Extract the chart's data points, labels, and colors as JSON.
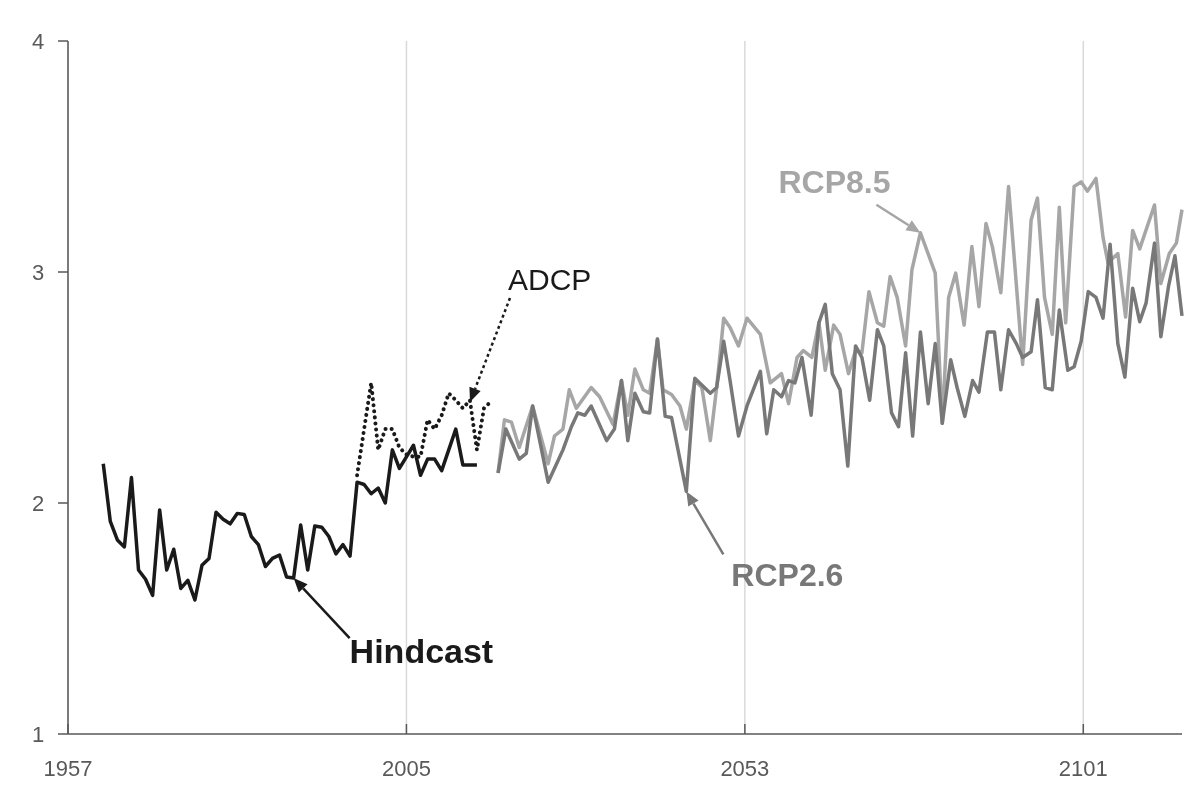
{
  "chart_data": {
    "type": "line",
    "xlim": [
      1957,
      2115
    ],
    "xticks": [
      1957,
      2005,
      2053,
      2101
    ],
    "ylim": [
      1,
      4
    ],
    "yticks": [
      1,
      2,
      3,
      4
    ],
    "grid": "x",
    "marker": "none",
    "annotations": [
      {
        "text": "Hindcast",
        "x": 1989,
        "y": 1.675
      },
      "ADCP",
      {
        "text": "RCP8.5",
        "x": 2077.9,
        "y": 3.17
      },
      {
        "text": "RCP2.6",
        "x": 2044.7,
        "y": 2.05
      }
    ],
    "series": [
      {
        "color": "#a6a6a6",
        "line_style": "solid",
        "x": [
          2018.0,
          2018.9,
          2019.9,
          2021.0,
          2022.9,
          2025.1,
          2026.0,
          2027.2,
          2028.1,
          2029.1,
          2031.2,
          2032.4,
          2034.3,
          2035.5,
          2036.4,
          2037.4,
          2038.6,
          2039.5,
          2040.6,
          2041.4,
          2042.6,
          2043.8,
          2044.7,
          2045.9,
          2046.9,
          2048.1,
          2049.0,
          2050.0,
          2050.9,
          2052.1,
          2053.3,
          2055.2,
          2056.6,
          2058.2,
          2059.2,
          2060.4,
          2061.3,
          2062.5,
          2063.5,
          2064.4,
          2065.6,
          2066.5,
          2067.7,
          2068.7,
          2069.6,
          2070.6,
          2071.8,
          2072.7,
          2073.6,
          2074.6,
          2075.8,
          2076.7,
          2077.9,
          2080.0,
          2081.0,
          2081.9,
          2082.9,
          2084.1,
          2085.2,
          2086.2,
          2087.2,
          2088.1,
          2089.3,
          2090.4,
          2092.4,
          2093.6,
          2094.5,
          2095.5,
          2096.6,
          2097.6,
          2098.5,
          2099.7,
          2100.7,
          2101.6,
          2102.8,
          2103.8,
          2104.5,
          2105.9,
          2107.0,
          2108.0,
          2109.0,
          2111.1,
          2112.0,
          2113.2,
          2114.2,
          2115.0
        ],
        "values": [
          2.13,
          2.36,
          2.35,
          2.24,
          2.42,
          2.17,
          2.29,
          2.32,
          2.49,
          2.41,
          2.5,
          2.46,
          2.34,
          2.53,
          2.38,
          2.58,
          2.49,
          2.475,
          2.71,
          2.49,
          2.47,
          2.42,
          2.32,
          2.53,
          2.5,
          2.27,
          2.5,
          2.8,
          2.76,
          2.68,
          2.8,
          2.73,
          2.52,
          2.56,
          2.43,
          2.63,
          2.66,
          2.63,
          2.78,
          2.575,
          2.77,
          2.73,
          2.56,
          2.66,
          2.65,
          2.915,
          2.78,
          2.765,
          2.98,
          2.89,
          2.68,
          3.01,
          3.17,
          2.995,
          2.345,
          2.89,
          2.995,
          2.77,
          3.11,
          2.85,
          3.21,
          3.11,
          2.91,
          3.37,
          2.6,
          3.225,
          3.32,
          2.89,
          2.73,
          3.28,
          2.78,
          3.37,
          3.39,
          3.35,
          3.405,
          3.15,
          3.04,
          3.08,
          2.805,
          3.18,
          3.1,
          3.29,
          2.95,
          3.08,
          3.125,
          3.27
        ]
      },
      {
        "color": "#787878",
        "line_style": "solid",
        "x": [
          2018.0,
          2019.1,
          2021.0,
          2022.0,
          2022.9,
          2025.1,
          2026.3,
          2027.2,
          2028.4,
          2029.3,
          2030.3,
          2031.2,
          2033.4,
          2034.5,
          2035.5,
          2036.4,
          2037.4,
          2038.6,
          2039.5,
          2040.6,
          2041.7,
          2042.6,
          2044.7,
          2045.9,
          2048.1,
          2049.0,
          2050.0,
          2050.9,
          2052.1,
          2053.3,
          2055.2,
          2056.1,
          2057.1,
          2058.2,
          2059.2,
          2060.1,
          2061.1,
          2062.4,
          2063.5,
          2064.4,
          2065.4,
          2066.5,
          2067.6,
          2068.7,
          2069.6,
          2070.7,
          2071.8,
          2072.7,
          2073.8,
          2074.8,
          2075.8,
          2076.8,
          2077.9,
          2079.0,
          2080.0,
          2081.0,
          2082.2,
          2083.1,
          2084.2,
          2085.3,
          2086.2,
          2087.4,
          2088.4,
          2089.3,
          2090.4,
          2091.5,
          2092.4,
          2093.6,
          2094.5,
          2095.6,
          2096.6,
          2097.6,
          2098.8,
          2099.7,
          2100.7,
          2101.7,
          2102.8,
          2103.8,
          2104.8,
          2105.9,
          2106.9,
          2108.0,
          2109.0,
          2109.9,
          2111.1,
          2112.0,
          2113.1,
          2114.0,
          2115.0
        ],
        "values": [
          2.13,
          2.32,
          2.19,
          2.215,
          2.42,
          2.09,
          2.17,
          2.23,
          2.33,
          2.39,
          2.38,
          2.42,
          2.27,
          2.32,
          2.53,
          2.27,
          2.475,
          2.395,
          2.39,
          2.71,
          2.375,
          2.37,
          2.05,
          2.54,
          2.475,
          2.5,
          2.7,
          2.53,
          2.29,
          2.42,
          2.57,
          2.3,
          2.49,
          2.46,
          2.53,
          2.52,
          2.63,
          2.38,
          2.78,
          2.86,
          2.56,
          2.49,
          2.16,
          2.68,
          2.63,
          2.445,
          2.75,
          2.68,
          2.39,
          2.33,
          2.65,
          2.29,
          2.74,
          2.43,
          2.69,
          2.345,
          2.62,
          2.5,
          2.375,
          2.53,
          2.48,
          2.74,
          2.74,
          2.49,
          2.75,
          2.69,
          2.63,
          2.655,
          2.88,
          2.5,
          2.49,
          2.835,
          2.575,
          2.59,
          2.7,
          2.915,
          2.89,
          2.8,
          3.12,
          2.69,
          2.545,
          2.93,
          2.785,
          2.865,
          3.125,
          2.72,
          2.94,
          3.07,
          2.81
        ]
      },
      {
        "color": "#1a1a1a",
        "line_style": "solid",
        "x": [
          1962,
          1963,
          1964,
          1965,
          1966,
          1967,
          1968,
          1969,
          1970,
          1971,
          1972,
          1973,
          1974,
          1975,
          1976,
          1977,
          1978,
          1979,
          1980,
          1981,
          1982,
          1983,
          1984,
          1985,
          1986,
          1987,
          1988,
          1989,
          1990,
          1991,
          1992,
          1993,
          1994,
          1995,
          1996,
          1997,
          1998,
          1999,
          2000,
          2001,
          2002,
          2003,
          2004,
          2005,
          2006,
          2007,
          2008,
          2009,
          2010,
          2011,
          2012,
          2013,
          2014,
          2015
        ],
        "values": [
          2.17,
          1.92,
          1.84,
          1.81,
          2.11,
          1.71,
          1.67,
          1.6,
          1.97,
          1.71,
          1.8,
          1.63,
          1.665,
          1.58,
          1.73,
          1.76,
          1.96,
          1.93,
          1.91,
          1.955,
          1.95,
          1.855,
          1.82,
          1.725,
          1.76,
          1.775,
          1.68,
          1.675,
          1.905,
          1.71,
          1.9,
          1.895,
          1.855,
          1.78,
          1.82,
          1.77,
          2.09,
          2.08,
          2.04,
          2.065,
          2.0,
          2.23,
          2.15,
          2.2,
          2.25,
          2.12,
          2.19,
          2.19,
          2.14,
          2.23,
          2.32,
          2.165,
          2.165,
          2.165
        ]
      },
      {
        "color": "#1a1a1a",
        "line_style": "dotted",
        "x": [
          1998,
          1999,
          2000,
          2001,
          2002,
          2003,
          2004,
          2005,
          2006,
          2007,
          2008,
          2009,
          2010,
          2011,
          2012,
          2013,
          2014,
          2015,
          2016,
          2017
        ],
        "values": [
          2.12,
          2.32,
          2.52,
          2.23,
          2.32,
          2.32,
          2.24,
          2.21,
          2.2,
          2.2,
          2.36,
          2.32,
          2.38,
          2.475,
          2.445,
          2.41,
          2.445,
          2.23,
          2.41,
          2.44
        ]
      }
    ]
  }
}
